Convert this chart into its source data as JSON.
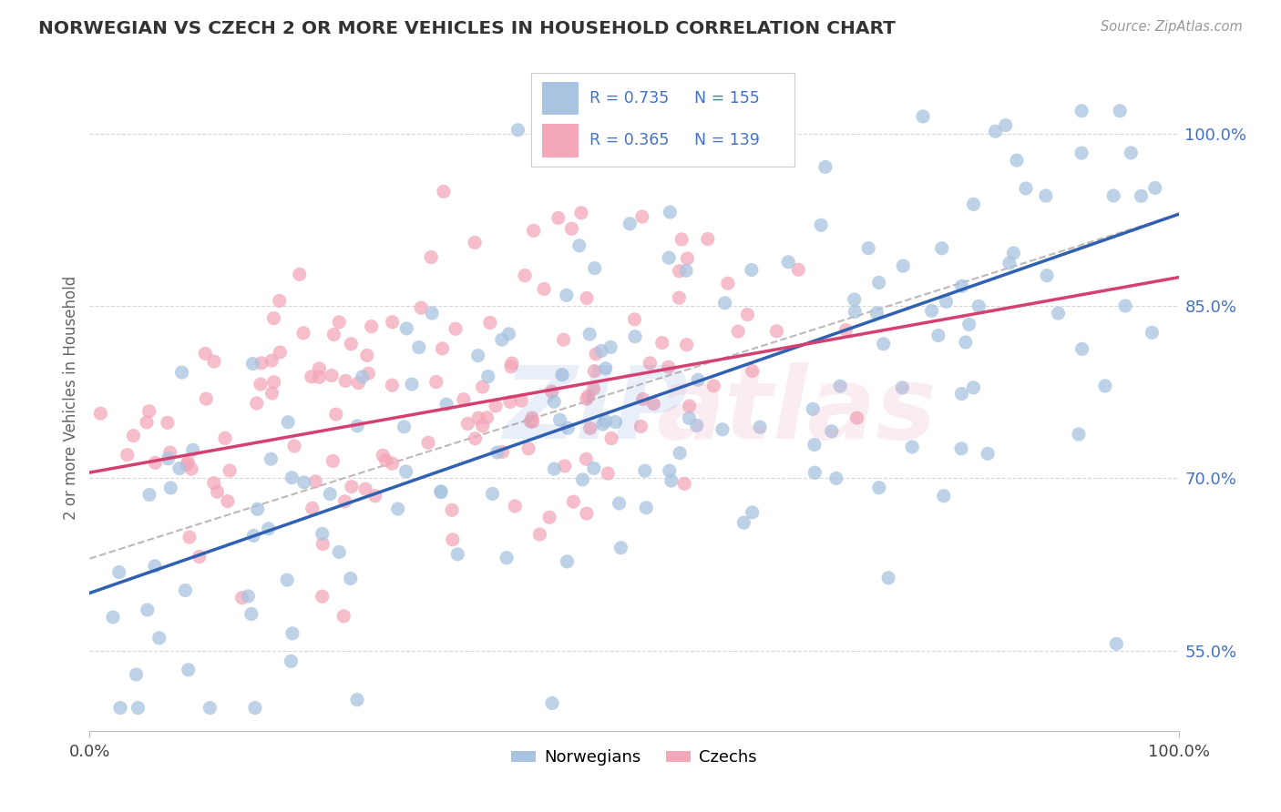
{
  "title": "NORWEGIAN VS CZECH 2 OR MORE VEHICLES IN HOUSEHOLD CORRELATION CHART",
  "source": "Source: ZipAtlas.com",
  "ylabel": "2 or more Vehicles in Household",
  "xlim": [
    0.0,
    100.0
  ],
  "ylim": [
    48.0,
    106.0
  ],
  "yticks": [
    55.0,
    70.0,
    85.0,
    100.0
  ],
  "xticks": [
    0.0,
    100.0
  ],
  "norwegian_R": 0.735,
  "norwegian_N": 155,
  "czech_R": 0.365,
  "czech_N": 139,
  "norwegian_color": "#a8c4e0",
  "czech_color": "#f4a7b9",
  "norwegian_line_color": "#3060b0",
  "czech_line_color": "#d44070",
  "dashed_line_color": "#c0b8b8",
  "legend_text_color": "#4472c4",
  "grid_color": "#d8d8d8",
  "background_color": "#ffffff",
  "nor_line_start_y": 60.0,
  "nor_line_end_y": 93.0,
  "cze_line_start_y": 70.5,
  "cze_line_end_y": 87.5,
  "dash_line_start_y": 63.0,
  "dash_line_end_y": 93.0
}
